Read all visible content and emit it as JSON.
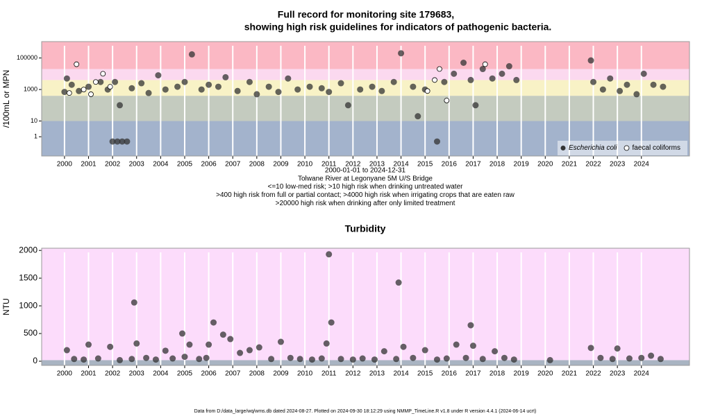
{
  "chart_data": [
    {
      "type": "scatter",
      "title": "Full record for monitoring site 179683,",
      "subtitle": "showing high risk guidelines for indicators of pathogenic bacteria.",
      "ylabel": "/100mL or MPN",
      "notes": [
        "2000-01-01 to 2024-12-31",
        "Tolwane River at Legonyane 5M U/S Bridge",
        "<=10 low-med risk; >10 high risk when drinking untreated water",
        ">400 high risk from full or partial contact; >4000 high risk when irrigating crops that are eaten raw",
        ">20000 high risk when drinking after only limited treatment"
      ],
      "log_scale": true,
      "xlim": [
        1999.05,
        2026.0
      ],
      "xticks": [
        2000,
        2001,
        2002,
        2003,
        2004,
        2005,
        2006,
        2007,
        2008,
        2009,
        2010,
        2011,
        2012,
        2013,
        2014,
        2015,
        2016,
        2017,
        2018,
        2019,
        2020,
        2021,
        2022,
        2023,
        2024
      ],
      "ylim": [
        0.06,
        1100000
      ],
      "yticks": [
        1,
        10,
        1000,
        100000
      ],
      "grid": true,
      "legend": "lower right",
      "bands": [
        {
          "from": 0.06,
          "to": 10,
          "color": "#a3b3cc"
        },
        {
          "from": 10,
          "to": 400,
          "color": "#c4cbbf"
        },
        {
          "from": 400,
          "to": 4000,
          "color": "#f8f2c6"
        },
        {
          "from": 4000,
          "to": 20000,
          "color": "#fbd9ef"
        },
        {
          "from": 20000,
          "to": 1100000,
          "color": "#fbb8c4"
        }
      ],
      "series": [
        {
          "name": "Escherichia coli",
          "color": "#333333",
          "marker": "filled",
          "x": [
            2000.0,
            2000.1,
            2000.3,
            2000.6,
            2001.0,
            2001.5,
            2001.8,
            2002.0,
            2002.2,
            2002.4,
            2002.6,
            2002.1,
            2002.3,
            2002.8,
            2003.2,
            2003.5,
            2003.9,
            2004.2,
            2004.7,
            2005.0,
            2005.3,
            2005.7,
            2006.0,
            2006.4,
            2006.7,
            2007.2,
            2007.7,
            2008.0,
            2008.5,
            2008.9,
            2009.3,
            2009.7,
            2010.2,
            2010.7,
            2011.0,
            2011.5,
            2011.8,
            2012.3,
            2012.8,
            2013.2,
            2013.7,
            2014.0,
            2014.5,
            2014.7,
            2015.0,
            2015.5,
            2015.8,
            2016.2,
            2016.6,
            2016.9,
            2017.1,
            2017.4,
            2017.8,
            2018.2,
            2018.5,
            2018.8,
            2021.9,
            2022.0,
            2022.4,
            2022.7,
            2023.1,
            2023.4,
            2023.8,
            2024.1,
            2024.5,
            2024.9
          ],
          "values": [
            700,
            5000,
            2000,
            800,
            1500,
            3000,
            1000,
            0.5,
            0.5,
            0.5,
            0.5,
            3000,
            100,
            1200,
            2500,
            600,
            8000,
            1000,
            1500,
            3000,
            170000,
            1000,
            2000,
            1500,
            6000,
            800,
            3000,
            500,
            1500,
            700,
            5000,
            1000,
            1500,
            1200,
            700,
            2500,
            100,
            1000,
            1500,
            800,
            3000,
            200000,
            1500,
            20,
            1000,
            0.5,
            3000,
            10000,
            50000,
            4000,
            100,
            20000,
            5000,
            10000,
            30000,
            4000,
            70000,
            3000,
            1000,
            5000,
            800,
            2000,
            500,
            10000,
            2000,
            1500
          ]
        },
        {
          "name": "faecal coliforms",
          "color": "#000000",
          "marker": "open",
          "x": [
            2000.2,
            2000.5,
            2000.8,
            2001.1,
            2001.3,
            2001.6,
            2001.9,
            2015.1,
            2015.4,
            2015.6,
            2015.9,
            2017.5
          ],
          "values": [
            600,
            40000,
            1000,
            500,
            3000,
            10000,
            1500,
            800,
            4000,
            20000,
            200,
            40000
          ]
        }
      ]
    },
    {
      "type": "scatter",
      "title": "Turbidity",
      "ylabel": "NTU",
      "log_scale": false,
      "xlim": [
        1999.05,
        2026.0
      ],
      "xticks": [
        2000,
        2001,
        2002,
        2003,
        2004,
        2005,
        2006,
        2007,
        2008,
        2009,
        2010,
        2011,
        2012,
        2013,
        2014,
        2015,
        2016,
        2017,
        2018,
        2019,
        2020,
        2021,
        2022,
        2023,
        2024
      ],
      "ylim": [
        -75,
        2040
      ],
      "yticks": [
        0,
        500,
        1000,
        1500,
        2000
      ],
      "grid": true,
      "bands": [
        {
          "from": -75,
          "to": 20,
          "color": "#a9b4c2"
        },
        {
          "from": 20,
          "to": 2040,
          "color": "#fcdcfb"
        }
      ],
      "series": [
        {
          "name": "Turbidity",
          "color": "#333333",
          "marker": "filled",
          "x": [
            2000.1,
            2000.4,
            2000.8,
            2001.0,
            2001.4,
            2001.9,
            2002.3,
            2002.8,
            2002.9,
            2003.0,
            2003.4,
            2003.8,
            2004.2,
            2004.5,
            2004.9,
            2005.0,
            2005.2,
            2005.6,
            2005.9,
            2006.0,
            2006.2,
            2006.6,
            2006.9,
            2007.3,
            2007.7,
            2008.1,
            2008.6,
            2009.0,
            2009.4,
            2009.8,
            2010.3,
            2010.7,
            2010.9,
            2011.0,
            2011.1,
            2011.5,
            2012.0,
            2012.4,
            2012.9,
            2013.3,
            2013.8,
            2013.9,
            2014.1,
            2014.5,
            2015.0,
            2015.5,
            2015.9,
            2016.3,
            2016.7,
            2016.9,
            2017.0,
            2017.4,
            2017.9,
            2018.3,
            2018.7,
            2020.2,
            2021.9,
            2022.3,
            2022.8,
            2023.0,
            2023.5,
            2024.0,
            2024.4,
            2024.8
          ],
          "values": [
            200,
            40,
            30,
            300,
            50,
            260,
            20,
            40,
            1060,
            320,
            60,
            30,
            190,
            50,
            500,
            80,
            300,
            40,
            60,
            300,
            700,
            480,
            400,
            150,
            200,
            250,
            40,
            350,
            60,
            40,
            30,
            50,
            320,
            1930,
            700,
            40,
            30,
            50,
            30,
            180,
            40,
            1420,
            260,
            60,
            200,
            30,
            50,
            300,
            60,
            650,
            280,
            40,
            180,
            60,
            30,
            20,
            240,
            60,
            40,
            230,
            50,
            60,
            100,
            40
          ]
        }
      ]
    }
  ],
  "footer": "Data from D:/data_large/wq/wms.db dated 2024-08-27. Plotted on 2024-09-30 18:12:29 using NMMP_TimeLine.R v1.8 under R version 4.4.1 (2024-06-14 ucrt)"
}
